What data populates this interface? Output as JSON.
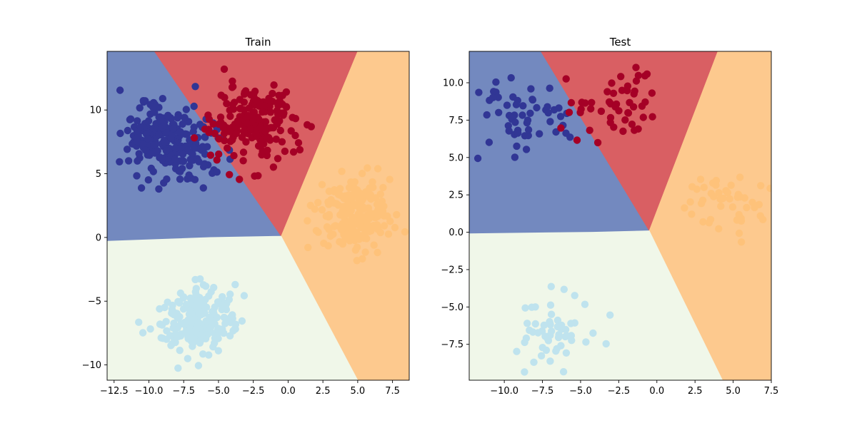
{
  "chart_data": [
    {
      "type": "scatter",
      "title": "Train",
      "xlabel": "",
      "ylabel": "",
      "xlim": [
        -13.0,
        8.7
      ],
      "ylim": [
        -11.2,
        14.6
      ],
      "xticks": [
        -12.5,
        -10.0,
        -7.5,
        -5.0,
        -2.5,
        0.0,
        2.5,
        5.0,
        7.5
      ],
      "xtick_labels": [
        "−12.5",
        "−10.0",
        "−7.5",
        "−5.0",
        "−2.5",
        "0.0",
        "2.5",
        "5.0",
        "7.5"
      ],
      "yticks": [
        -10,
        -5,
        0,
        5,
        10
      ],
      "ytick_labels": [
        "−10",
        "−5",
        "0",
        "5",
        "10"
      ],
      "grid": false,
      "legend": "none",
      "decision_regions": [
        {
          "class": 0,
          "color": "#7389bf",
          "vertices": [
            [
              -13.0,
              14.6
            ],
            [
              -9.6,
              14.6
            ],
            [
              -0.5,
              0.1
            ],
            [
              -5.6,
              0.0
            ],
            [
              -13.0,
              -0.3
            ]
          ]
        },
        {
          "class": 1,
          "color": "#d95f63",
          "vertices": [
            [
              -9.6,
              14.6
            ],
            [
              5.0,
              14.6
            ],
            [
              -0.5,
              0.1
            ]
          ]
        },
        {
          "class": 2,
          "color": "#fdc98e",
          "vertices": [
            [
              5.0,
              14.6
            ],
            [
              8.7,
              14.6
            ],
            [
              8.7,
              -11.2
            ],
            [
              5.0,
              -11.2
            ],
            [
              -0.5,
              0.1
            ]
          ]
        },
        {
          "class": 3,
          "color": "#f0f7e9",
          "vertices": [
            [
              -13.0,
              -0.3
            ],
            [
              -5.6,
              0.0
            ],
            [
              -0.5,
              0.1
            ],
            [
              5.0,
              -11.2
            ],
            [
              -13.0,
              -11.2
            ]
          ]
        }
      ],
      "clusters": [
        {
          "class": 0,
          "color": "#313695",
          "center": [
            -8.6,
            7.6
          ],
          "spread": [
            1.65,
            1.45
          ],
          "n": 240
        },
        {
          "class": 1,
          "color": "#a50026",
          "center": [
            -2.6,
            8.8
          ],
          "spread": [
            1.5,
            1.45
          ],
          "n": 200
        },
        {
          "class": 2,
          "color": "#fec27a",
          "center": [
            4.8,
            1.8
          ],
          "spread": [
            1.3,
            1.45
          ],
          "n": 210
        },
        {
          "class": 3,
          "color": "#bfe3ee",
          "center": [
            -6.6,
            -6.6
          ],
          "spread": [
            1.35,
            1.3
          ],
          "n": 200
        }
      ]
    },
    {
      "type": "scatter",
      "title": "Test",
      "xlabel": "",
      "ylabel": "",
      "xlim": [
        -12.3,
        7.5
      ],
      "ylim": [
        -9.9,
        12.1
      ],
      "xticks": [
        -10.0,
        -7.5,
        -5.0,
        -2.5,
        0.0,
        2.5,
        5.0,
        7.5
      ],
      "xtick_labels": [
        "−10.0",
        "−7.5",
        "−5.0",
        "−2.5",
        "0.0",
        "2.5",
        "5.0",
        "7.5"
      ],
      "yticks": [
        -7.5,
        -5.0,
        -2.5,
        0.0,
        2.5,
        5.0,
        7.5,
        10.0
      ],
      "ytick_labels": [
        "−7.5",
        "−5.0",
        "−2.5",
        "0.0",
        "2.5",
        "5.0",
        "7.5",
        "10.0"
      ],
      "grid": false,
      "legend": "none",
      "decision_regions": [
        {
          "class": 0,
          "color": "#7389bf",
          "vertices": [
            [
              -12.3,
              12.1
            ],
            [
              -7.6,
              12.1
            ],
            [
              -0.5,
              0.1
            ],
            [
              -4.2,
              0.0
            ],
            [
              -12.3,
              -0.1
            ]
          ]
        },
        {
          "class": 1,
          "color": "#d95f63",
          "vertices": [
            [
              -7.6,
              12.1
            ],
            [
              4.0,
              12.1
            ],
            [
              -0.5,
              0.1
            ]
          ]
        },
        {
          "class": 2,
          "color": "#fdc98e",
          "vertices": [
            [
              4.0,
              12.1
            ],
            [
              7.5,
              12.1
            ],
            [
              7.5,
              -9.9
            ],
            [
              4.3,
              -9.9
            ],
            [
              -0.5,
              0.1
            ]
          ]
        },
        {
          "class": 3,
          "color": "#f0f7e9",
          "vertices": [
            [
              -12.3,
              -0.1
            ],
            [
              -4.2,
              0.0
            ],
            [
              -0.5,
              0.1
            ],
            [
              4.3,
              -9.9
            ],
            [
              -12.3,
              -9.9
            ]
          ]
        }
      ],
      "clusters": [
        {
          "class": 0,
          "color": "#313695",
          "center": [
            -8.6,
            7.4
          ],
          "spread": [
            1.6,
            1.45
          ],
          "n": 55
        },
        {
          "class": 1,
          "color": "#a50026",
          "center": [
            -2.6,
            8.9
          ],
          "spread": [
            1.4,
            1.2
          ],
          "n": 50
        },
        {
          "class": 2,
          "color": "#fec27a",
          "center": [
            4.5,
            2.2
          ],
          "spread": [
            1.35,
            1.2
          ],
          "n": 48
        },
        {
          "class": 3,
          "color": "#bfe3ee",
          "center": [
            -6.6,
            -6.6
          ],
          "spread": [
            1.2,
            1.3
          ],
          "n": 55
        }
      ]
    }
  ]
}
